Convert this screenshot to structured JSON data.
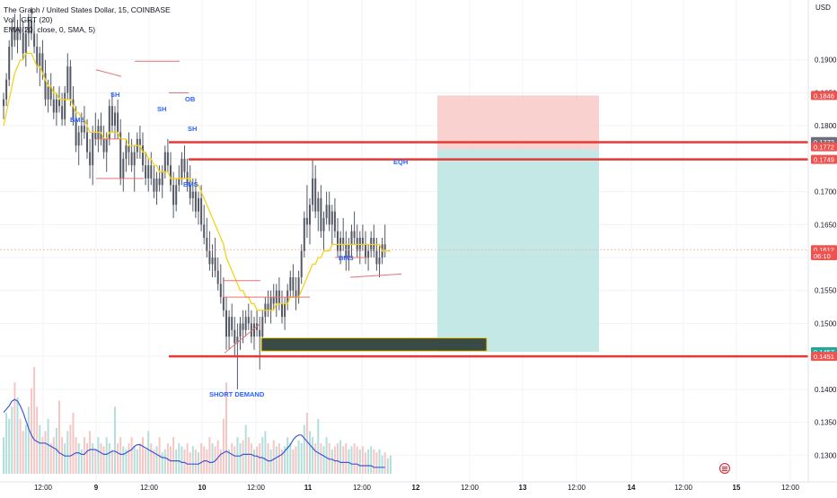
{
  "header": {
    "title": "The Graph / United States Dollar, 15, COINBASE",
    "volume": "Vol · GRT (20)",
    "ema": "EMA (20, close, 0, SMA, 5)"
  },
  "currency": "USD",
  "colors": {
    "up": "#26a69a",
    "down": "#ef5350",
    "candle": "#555a66",
    "ema": "#f2d21b",
    "volume_ma": "#3b5bd1",
    "level_line": "#e53935",
    "target_zone": "#bde6e2",
    "stop_zone": "#f8c9c6",
    "annotation_text": "#2962ff"
  },
  "chart_data": {
    "type": "candlestick",
    "title": "The Graph / United States Dollar, 15, COINBASE",
    "y_axis": {
      "min": 0.128,
      "max": 0.198,
      "ticks": [
        "0.1300",
        "0.1350",
        "0.1400",
        "0.1450",
        "0.1500",
        "0.1550",
        "0.1600",
        "0.1650",
        "0.1700",
        "0.1750",
        "0.1800",
        "0.1850",
        "0.1900"
      ],
      "tick_values": [
        0.13,
        0.135,
        0.14,
        0.145,
        0.15,
        0.155,
        0.16,
        0.165,
        0.17,
        0.175,
        0.18,
        0.185,
        0.19
      ],
      "price_tags": [
        {
          "label": "0.1846",
          "value": 0.1846,
          "color": "#ef5350"
        },
        {
          "label": "0.1772",
          "value": 0.1776,
          "color": "#6b6f7a"
        },
        {
          "label": "0.1772",
          "value": 0.1768,
          "color": "#ef5350"
        },
        {
          "label": "0.1749",
          "value": 0.1749,
          "color": "#ef5350"
        },
        {
          "label": "0.1612",
          "value": 0.1612,
          "color": "#ef5350"
        },
        {
          "label": "06:10",
          "value": 0.1603,
          "color": "#ef5350"
        },
        {
          "label": "0.1457",
          "value": 0.1457,
          "color": "#26a69a"
        },
        {
          "label": "0.1451",
          "value": 0.145,
          "color": "#ef5350"
        }
      ]
    },
    "x_axis": {
      "labels": [
        "12:00",
        "9",
        "12:00",
        "10",
        "12:00",
        "11",
        "12:00",
        "12",
        "12:00",
        "13",
        "12:00",
        "14",
        "12:00",
        "15",
        "12:00"
      ],
      "positions": [
        48,
        107,
        166,
        225,
        285,
        343,
        403,
        463,
        523,
        582,
        642,
        703,
        761,
        820,
        880
      ],
      "bold": [
        false,
        true,
        false,
        true,
        false,
        true,
        false,
        true,
        false,
        true,
        false,
        true,
        false,
        true,
        false
      ]
    },
    "ohlc": [
      [
        0.183,
        0.185,
        0.181,
        0.184
      ],
      [
        0.184,
        0.188,
        0.183,
        0.187
      ],
      [
        0.187,
        0.193,
        0.186,
        0.192
      ],
      [
        0.192,
        0.196,
        0.19,
        0.195
      ],
      [
        0.195,
        0.197,
        0.192,
        0.193
      ],
      [
        0.193,
        0.196,
        0.191,
        0.195
      ],
      [
        0.195,
        0.197,
        0.193,
        0.194
      ],
      [
        0.194,
        0.196,
        0.19,
        0.191
      ],
      [
        0.191,
        0.195,
        0.189,
        0.194
      ],
      [
        0.194,
        0.197,
        0.192,
        0.196
      ],
      [
        0.196,
        0.198,
        0.193,
        0.194
      ],
      [
        0.194,
        0.196,
        0.191,
        0.192
      ],
      [
        0.192,
        0.194,
        0.188,
        0.189
      ],
      [
        0.189,
        0.192,
        0.186,
        0.191
      ],
      [
        0.191,
        0.193,
        0.187,
        0.188
      ],
      [
        0.188,
        0.19,
        0.183,
        0.184
      ],
      [
        0.184,
        0.187,
        0.182,
        0.186
      ],
      [
        0.186,
        0.188,
        0.183,
        0.184
      ],
      [
        0.184,
        0.186,
        0.181,
        0.182
      ],
      [
        0.182,
        0.185,
        0.18,
        0.184
      ],
      [
        0.184,
        0.186,
        0.182,
        0.183
      ],
      [
        0.183,
        0.185,
        0.18,
        0.181
      ],
      [
        0.181,
        0.186,
        0.18,
        0.185
      ],
      [
        0.185,
        0.191,
        0.184,
        0.189
      ],
      [
        0.189,
        0.19,
        0.183,
        0.184
      ],
      [
        0.184,
        0.186,
        0.18,
        0.181
      ],
      [
        0.181,
        0.183,
        0.176,
        0.177
      ],
      [
        0.177,
        0.18,
        0.174,
        0.179
      ],
      [
        0.179,
        0.182,
        0.177,
        0.18
      ],
      [
        0.18,
        0.183,
        0.178,
        0.179
      ],
      [
        0.179,
        0.181,
        0.175,
        0.176
      ],
      [
        0.176,
        0.178,
        0.172,
        0.174
      ],
      [
        0.174,
        0.18,
        0.171,
        0.179
      ],
      [
        0.179,
        0.182,
        0.177,
        0.178
      ],
      [
        0.178,
        0.181,
        0.176,
        0.18
      ],
      [
        0.18,
        0.182,
        0.177,
        0.178
      ],
      [
        0.178,
        0.18,
        0.175,
        0.176
      ],
      [
        0.176,
        0.179,
        0.173,
        0.178
      ],
      [
        0.178,
        0.184,
        0.177,
        0.183
      ],
      [
        0.183,
        0.185,
        0.179,
        0.18
      ],
      [
        0.18,
        0.183,
        0.178,
        0.182
      ],
      [
        0.182,
        0.184,
        0.178,
        0.179
      ],
      [
        0.179,
        0.181,
        0.171,
        0.172
      ],
      [
        0.172,
        0.176,
        0.17,
        0.175
      ],
      [
        0.175,
        0.178,
        0.173,
        0.177
      ],
      [
        0.177,
        0.179,
        0.174,
        0.176
      ],
      [
        0.176,
        0.178,
        0.173,
        0.174
      ],
      [
        0.174,
        0.177,
        0.17,
        0.176
      ],
      [
        0.176,
        0.179,
        0.175,
        0.178
      ],
      [
        0.178,
        0.18,
        0.175,
        0.177
      ],
      [
        0.177,
        0.179,
        0.173,
        0.174
      ],
      [
        0.174,
        0.176,
        0.171,
        0.172
      ],
      [
        0.172,
        0.175,
        0.17,
        0.174
      ],
      [
        0.174,
        0.176,
        0.171,
        0.172
      ],
      [
        0.172,
        0.174,
        0.169,
        0.17
      ],
      [
        0.17,
        0.173,
        0.168,
        0.172
      ],
      [
        0.172,
        0.174,
        0.17,
        0.171
      ],
      [
        0.171,
        0.174,
        0.169,
        0.173
      ],
      [
        0.173,
        0.177,
        0.172,
        0.176
      ],
      [
        0.176,
        0.178,
        0.173,
        0.174
      ],
      [
        0.174,
        0.176,
        0.17,
        0.171
      ],
      [
        0.171,
        0.173,
        0.166,
        0.168
      ],
      [
        0.168,
        0.172,
        0.167,
        0.171
      ],
      [
        0.171,
        0.174,
        0.17,
        0.172
      ],
      [
        0.172,
        0.176,
        0.171,
        0.175
      ],
      [
        0.175,
        0.177,
        0.172,
        0.173
      ],
      [
        0.173,
        0.175,
        0.17,
        0.171
      ],
      [
        0.171,
        0.174,
        0.168,
        0.169
      ],
      [
        0.169,
        0.172,
        0.167,
        0.17
      ],
      [
        0.17,
        0.172,
        0.166,
        0.167
      ],
      [
        0.167,
        0.17,
        0.165,
        0.169
      ],
      [
        0.169,
        0.171,
        0.164,
        0.165
      ],
      [
        0.165,
        0.168,
        0.162,
        0.163
      ],
      [
        0.163,
        0.166,
        0.16,
        0.161
      ],
      [
        0.161,
        0.164,
        0.158,
        0.159
      ],
      [
        0.159,
        0.162,
        0.157,
        0.16
      ],
      [
        0.16,
        0.163,
        0.157,
        0.158
      ],
      [
        0.158,
        0.16,
        0.155,
        0.156
      ],
      [
        0.156,
        0.159,
        0.153,
        0.154
      ],
      [
        0.154,
        0.157,
        0.151,
        0.152
      ],
      [
        0.152,
        0.154,
        0.146,
        0.148
      ],
      [
        0.148,
        0.152,
        0.146,
        0.151
      ],
      [
        0.151,
        0.153,
        0.148,
        0.149
      ],
      [
        0.149,
        0.151,
        0.145,
        0.147
      ],
      [
        0.147,
        0.15,
        0.14,
        0.148
      ],
      [
        0.148,
        0.151,
        0.146,
        0.15
      ],
      [
        0.15,
        0.152,
        0.147,
        0.149
      ],
      [
        0.149,
        0.152,
        0.148,
        0.151
      ],
      [
        0.151,
        0.153,
        0.149,
        0.15
      ],
      [
        0.15,
        0.152,
        0.147,
        0.148
      ],
      [
        0.148,
        0.151,
        0.146,
        0.15
      ],
      [
        0.15,
        0.152,
        0.148,
        0.149
      ],
      [
        0.149,
        0.151,
        0.143,
        0.148
      ],
      [
        0.148,
        0.152,
        0.147,
        0.151
      ],
      [
        0.151,
        0.154,
        0.15,
        0.153
      ],
      [
        0.153,
        0.155,
        0.151,
        0.152
      ],
      [
        0.152,
        0.155,
        0.15,
        0.154
      ],
      [
        0.154,
        0.156,
        0.152,
        0.153
      ],
      [
        0.153,
        0.156,
        0.151,
        0.155
      ],
      [
        0.155,
        0.157,
        0.152,
        0.153
      ],
      [
        0.153,
        0.155,
        0.15,
        0.151
      ],
      [
        0.151,
        0.154,
        0.149,
        0.153
      ],
      [
        0.153,
        0.156,
        0.152,
        0.155
      ],
      [
        0.155,
        0.158,
        0.154,
        0.157
      ],
      [
        0.157,
        0.159,
        0.154,
        0.155
      ],
      [
        0.155,
        0.157,
        0.152,
        0.154
      ],
      [
        0.154,
        0.158,
        0.153,
        0.157
      ],
      [
        0.157,
        0.162,
        0.156,
        0.161
      ],
      [
        0.161,
        0.167,
        0.16,
        0.166
      ],
      [
        0.166,
        0.171,
        0.163,
        0.165
      ],
      [
        0.165,
        0.169,
        0.162,
        0.168
      ],
      [
        0.168,
        0.175,
        0.167,
        0.172
      ],
      [
        0.172,
        0.174,
        0.166,
        0.167
      ],
      [
        0.167,
        0.17,
        0.164,
        0.169
      ],
      [
        0.169,
        0.171,
        0.163,
        0.164
      ],
      [
        0.164,
        0.167,
        0.161,
        0.166
      ],
      [
        0.166,
        0.17,
        0.165,
        0.168
      ],
      [
        0.168,
        0.17,
        0.164,
        0.165
      ],
      [
        0.165,
        0.168,
        0.162,
        0.167
      ],
      [
        0.167,
        0.169,
        0.163,
        0.164
      ],
      [
        0.164,
        0.166,
        0.16,
        0.161
      ],
      [
        0.161,
        0.164,
        0.159,
        0.163
      ],
      [
        0.163,
        0.166,
        0.161,
        0.162
      ],
      [
        0.162,
        0.164,
        0.158,
        0.16
      ],
      [
        0.16,
        0.163,
        0.158,
        0.162
      ],
      [
        0.162,
        0.165,
        0.16,
        0.164
      ],
      [
        0.164,
        0.167,
        0.162,
        0.163
      ],
      [
        0.163,
        0.165,
        0.16,
        0.161
      ],
      [
        0.161,
        0.164,
        0.159,
        0.163
      ],
      [
        0.163,
        0.165,
        0.161,
        0.162
      ],
      [
        0.162,
        0.164,
        0.159,
        0.16
      ],
      [
        0.16,
        0.162,
        0.158,
        0.161
      ],
      [
        0.161,
        0.164,
        0.16,
        0.163
      ],
      [
        0.163,
        0.165,
        0.16,
        0.161
      ],
      [
        0.161,
        0.163,
        0.158,
        0.159
      ],
      [
        0.159,
        0.162,
        0.157,
        0.16
      ],
      [
        0.16,
        0.163,
        0.159,
        0.162
      ],
      [
        0.162,
        0.165,
        0.16,
        0.161
      ]
    ],
    "ema": [
      0.18,
      0.182,
      0.184,
      0.186,
      0.188,
      0.189,
      0.19,
      0.19,
      0.191,
      0.191,
      0.191,
      0.19,
      0.189,
      0.189,
      0.188,
      0.187,
      0.186,
      0.186,
      0.185,
      0.185,
      0.184,
      0.184,
      0.184,
      0.184,
      0.184,
      0.183,
      0.182,
      0.182,
      0.181,
      0.181,
      0.18,
      0.179,
      0.179,
      0.179,
      0.179,
      0.179,
      0.178,
      0.178,
      0.179,
      0.179,
      0.179,
      0.179,
      0.178,
      0.178,
      0.178,
      0.177,
      0.177,
      0.177,
      0.177,
      0.177,
      0.176,
      0.176,
      0.175,
      0.175,
      0.174,
      0.174,
      0.173,
      0.173,
      0.173,
      0.173,
      0.172,
      0.172,
      0.172,
      0.172,
      0.172,
      0.172,
      0.172,
      0.172,
      0.171,
      0.171,
      0.171,
      0.17,
      0.169,
      0.168,
      0.167,
      0.166,
      0.165,
      0.164,
      0.163,
      0.162,
      0.16,
      0.159,
      0.158,
      0.157,
      0.156,
      0.155,
      0.155,
      0.154,
      0.154,
      0.153,
      0.153,
      0.152,
      0.152,
      0.152,
      0.152,
      0.152,
      0.152,
      0.152,
      0.153,
      0.153,
      0.153,
      0.153,
      0.153,
      0.154,
      0.154,
      0.154,
      0.154,
      0.155,
      0.156,
      0.157,
      0.158,
      0.159,
      0.159,
      0.16,
      0.16,
      0.161,
      0.161,
      0.161,
      0.162,
      0.162,
      0.162,
      0.162,
      0.162,
      0.162,
      0.162,
      0.162,
      0.162,
      0.162,
      0.162,
      0.162,
      0.162,
      0.162,
      0.162,
      0.162,
      0.162,
      0.162,
      0.161,
      0.161,
      0.161,
      0.161
    ],
    "volume": [
      12,
      20,
      18,
      22,
      30,
      25,
      18,
      14,
      16,
      22,
      28,
      35,
      22,
      16,
      12,
      14,
      18,
      10,
      12,
      15,
      24,
      12,
      10,
      14,
      16,
      20,
      12,
      10,
      8,
      12,
      10,
      14,
      10,
      8,
      12,
      10,
      9,
      12,
      10,
      8,
      22,
      10,
      12,
      9,
      8,
      10,
      12,
      9,
      8,
      10,
      12,
      8,
      14,
      10,
      8,
      9,
      12,
      7,
      8,
      10,
      9,
      12,
      8,
      10,
      9,
      8,
      10,
      7,
      9,
      8,
      7,
      10,
      9,
      8,
      12,
      10,
      9,
      11,
      8,
      18,
      30,
      8,
      10,
      9,
      12,
      10,
      11,
      16,
      12,
      10,
      8,
      9,
      10,
      12,
      14,
      10,
      8,
      11,
      9,
      10,
      8,
      9,
      12,
      10,
      8,
      9,
      11,
      10,
      16,
      20,
      14,
      12,
      10,
      18,
      10,
      9,
      12,
      10,
      8,
      9,
      10,
      11,
      9,
      10,
      8,
      9,
      10,
      9,
      8,
      9,
      7,
      8,
      9,
      8,
      7,
      8,
      6,
      7,
      5,
      6
    ],
    "volume_ma": [
      0.38,
      0.4,
      0.42,
      0.45,
      0.46,
      0.45,
      0.42,
      0.38,
      0.33,
      0.28,
      0.24,
      0.21,
      0.2,
      0.19,
      0.19,
      0.19,
      0.18,
      0.17,
      0.16,
      0.15,
      0.13,
      0.12,
      0.11,
      0.11,
      0.11,
      0.12,
      0.13,
      0.13,
      0.12,
      0.12,
      0.14,
      0.15,
      0.15,
      0.15,
      0.14,
      0.13,
      0.12,
      0.12,
      0.13,
      0.14,
      0.14,
      0.13,
      0.12,
      0.12,
      0.13,
      0.14,
      0.15,
      0.17,
      0.18,
      0.18,
      0.17,
      0.16,
      0.15,
      0.14,
      0.13,
      0.12,
      0.11,
      0.1,
      0.1,
      0.09,
      0.08,
      0.08,
      0.08,
      0.08,
      0.07,
      0.07,
      0.06,
      0.06,
      0.06,
      0.06,
      0.06,
      0.07,
      0.08,
      0.08,
      0.07,
      0.07,
      0.08,
      0.1,
      0.12,
      0.13,
      0.14,
      0.13,
      0.12,
      0.11,
      0.11,
      0.11,
      0.12,
      0.12,
      0.12,
      0.12,
      0.11,
      0.11,
      0.1,
      0.1,
      0.09,
      0.08,
      0.08,
      0.09,
      0.1,
      0.11,
      0.12,
      0.14,
      0.16,
      0.18,
      0.21,
      0.23,
      0.24,
      0.24,
      0.22,
      0.2,
      0.18,
      0.16,
      0.14,
      0.13,
      0.12,
      0.11,
      0.1,
      0.09,
      0.09,
      0.08,
      0.08,
      0.07,
      0.07,
      0.07,
      0.07,
      0.06,
      0.06,
      0.06,
      0.05,
      0.05,
      0.05,
      0.05,
      0.05,
      0.04,
      0.04,
      0.04,
      0.04,
      0.04
    ],
    "levels": [
      {
        "value": 0.1775,
        "style": "thick-red"
      },
      {
        "value": 0.1749,
        "style": "thick-red"
      },
      {
        "value": 0.145,
        "style": "thick-red"
      },
      {
        "value": 0.1612,
        "style": "thin-red"
      }
    ],
    "position": {
      "stop": 0.1846,
      "entry": 0.1764,
      "target": 0.1457
    },
    "demand_box": {
      "top": 0.1478,
      "bottom": 0.1458
    },
    "annotations": [
      "SH",
      "OB",
      "SH",
      "SH",
      "BMS",
      "BMS",
      "BMS",
      "EQH",
      "SHORT DEMAND"
    ]
  }
}
